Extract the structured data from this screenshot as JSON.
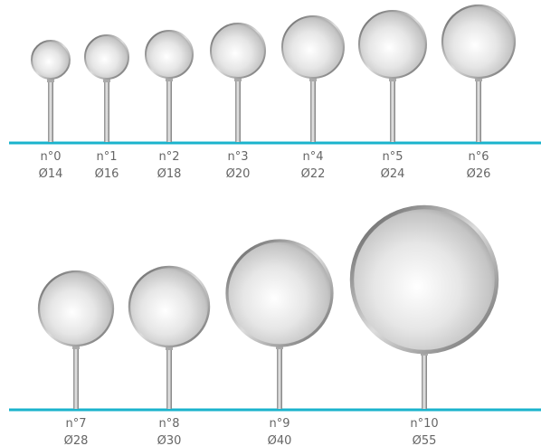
{
  "rows": [
    {
      "items": [
        {
          "number": "n°0",
          "diameter": "Ø14"
        },
        {
          "number": "n°1",
          "diameter": "Ø16"
        },
        {
          "number": "n°2",
          "diameter": "Ø18"
        },
        {
          "number": "n°3",
          "diameter": "Ø20"
        },
        {
          "number": "n°4",
          "diameter": "Ø22"
        },
        {
          "number": "n°5",
          "diameter": "Ø24"
        },
        {
          "number": "n°6",
          "diameter": "Ø26"
        }
      ]
    },
    {
      "items": [
        {
          "number": "n°7",
          "diameter": "Ø28"
        },
        {
          "number": "n°8",
          "diameter": "Ø30"
        },
        {
          "number": "n°9",
          "diameter": "Ø40"
        },
        {
          "number": "n°10",
          "diameter": "Ø55"
        }
      ]
    }
  ]
}
